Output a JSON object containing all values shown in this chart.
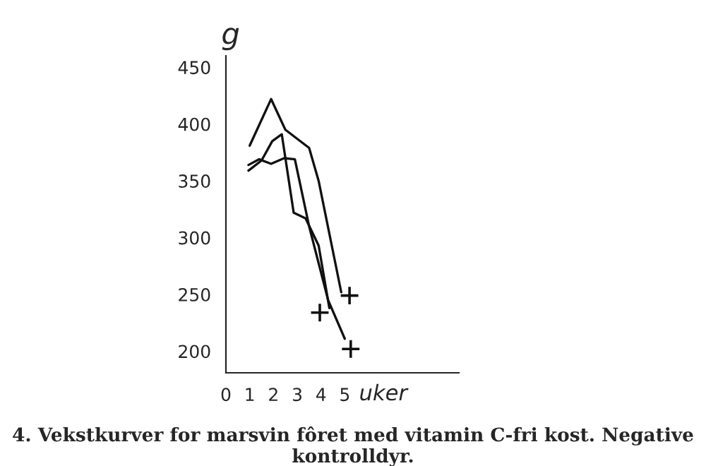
{
  "chart_data": {
    "type": "line",
    "xlabel": "uker",
    "ylabel": "g",
    "annotations": [
      "4. Vekstkurver for marsvin fôret med vitamin C-fri kost. Negative kontrolldyr."
    ],
    "xlim": [
      0,
      9.8
    ],
    "xticks": [
      0,
      1,
      2,
      3,
      4,
      5
    ],
    "ylim": [
      181,
      460
    ],
    "yticks": [
      200,
      250,
      300,
      350,
      400,
      450
    ],
    "grid": false,
    "legend": false,
    "marker": "none",
    "line_style": "solid",
    "series": [
      {
        "color": "#111111",
        "x": [
          1.0,
          1.9,
          2.5,
          3.5,
          3.9,
          4.85
        ],
        "values": [
          381,
          422,
          395,
          379,
          350,
          252
        ]
      },
      {
        "color": "#111111",
        "x": [
          0.95,
          1.5,
          1.95,
          2.35,
          2.85,
          3.35,
          3.9,
          4.35
        ],
        "values": [
          359,
          368,
          385,
          391,
          322,
          317,
          293,
          238
        ]
      },
      {
        "color": "#111111",
        "x": [
          0.95,
          1.4,
          1.9,
          2.45,
          2.9,
          3.5,
          4.3,
          5.0
        ],
        "values": [
          364,
          369,
          365,
          370,
          369,
          310,
          245,
          211
        ]
      },
      {
        "type": "scatter",
        "marker": "cross",
        "color": "#111111",
        "x": [
          3.95,
          5.2,
          5.25
        ],
        "values": [
          234,
          249,
          202
        ]
      }
    ]
  }
}
